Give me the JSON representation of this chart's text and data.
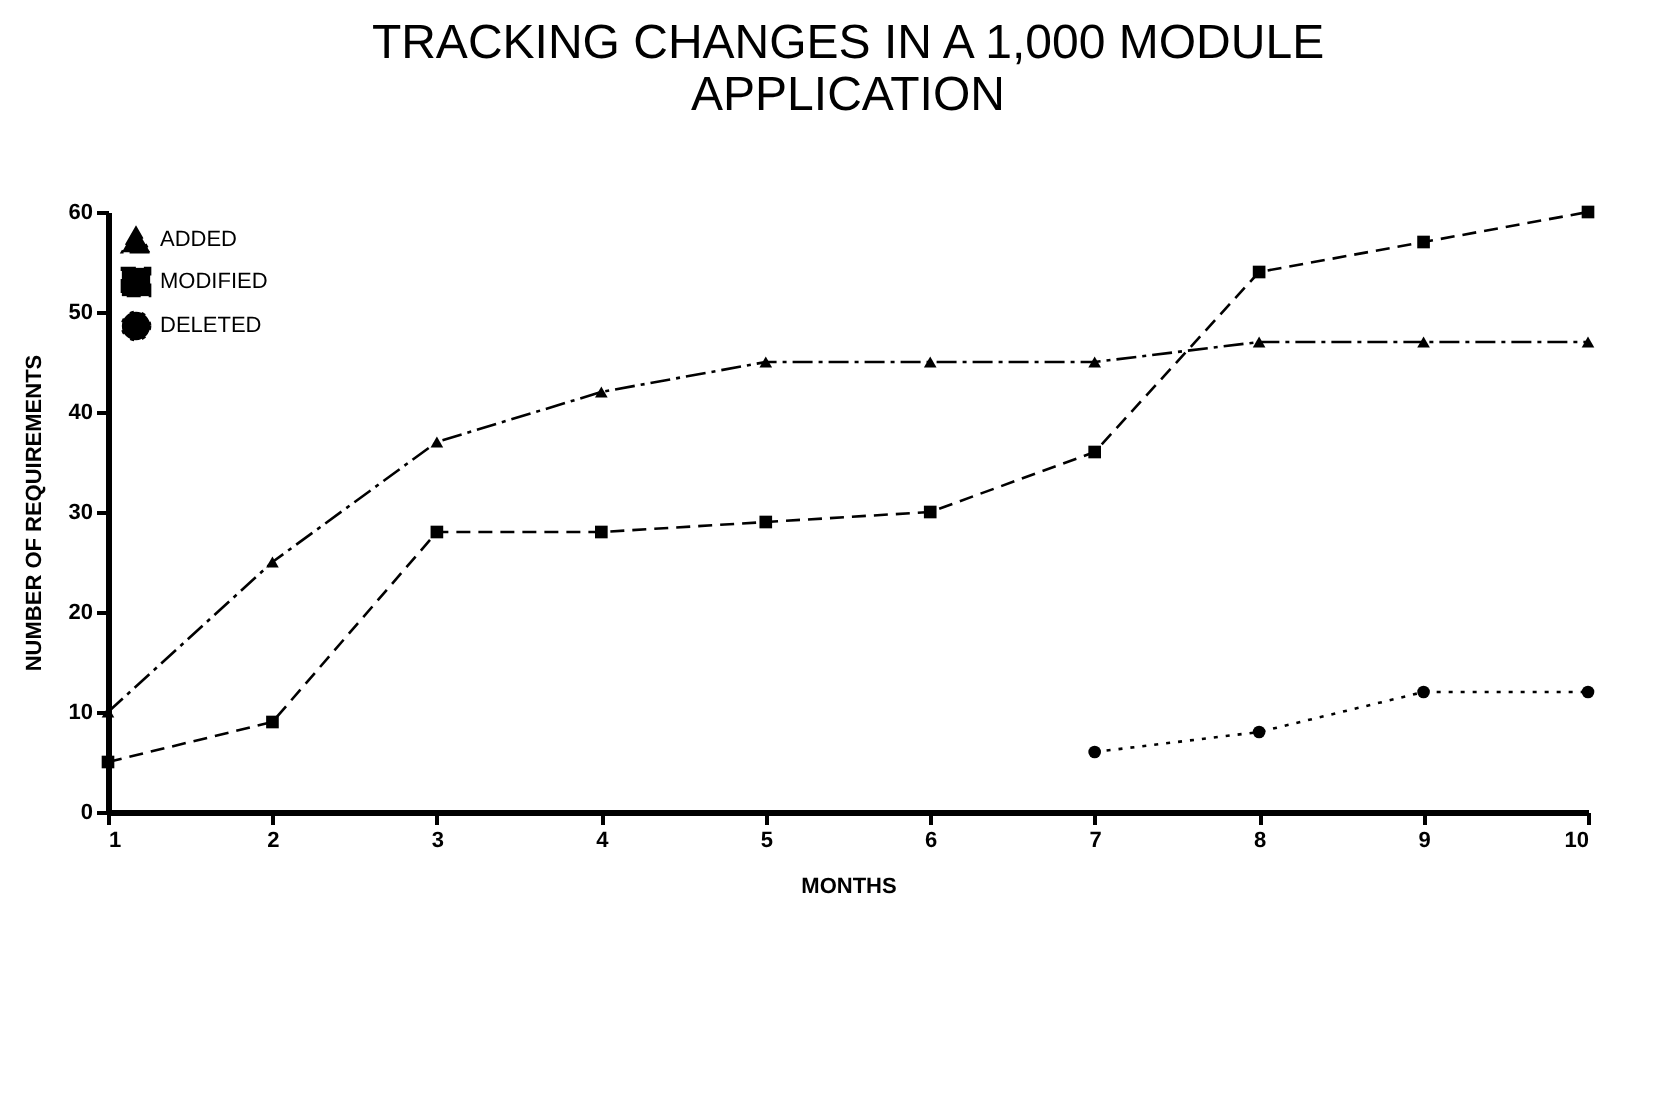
{
  "chart_data": {
    "type": "line",
    "title": "TRACKING CHANGES IN A 1,000 MODULE APPLICATION",
    "xlabel": "MONTHS",
    "ylabel": "NUMBER OF REQUIREMENTS",
    "x": [
      1,
      2,
      3,
      4,
      5,
      6,
      7,
      8,
      9,
      10
    ],
    "series": [
      {
        "name": "ADDED",
        "color": "#000000",
        "marker": "triangle",
        "line_style": "dashdot",
        "values": [
          10,
          25,
          37,
          42,
          45,
          45,
          45,
          47,
          47,
          47
        ]
      },
      {
        "name": "MODIFIED",
        "color": "#000000",
        "marker": "square",
        "line_style": "dashed",
        "values": [
          5,
          9,
          28,
          28,
          29,
          30,
          36,
          54,
          57,
          60
        ]
      },
      {
        "name": "DELETED",
        "color": "#000000",
        "marker": "circle",
        "line_style": "dotted",
        "values": [
          null,
          null,
          null,
          null,
          null,
          null,
          6,
          8,
          12,
          12
        ]
      }
    ],
    "xlim": [
      1,
      10
    ],
    "xticks": [
      1,
      2,
      3,
      4,
      5,
      6,
      7,
      8,
      9,
      10
    ],
    "ylim": [
      0,
      60
    ],
    "yticks": [
      0,
      10,
      20,
      30,
      40,
      50,
      60
    ],
    "grid": false,
    "legend": "top left"
  }
}
